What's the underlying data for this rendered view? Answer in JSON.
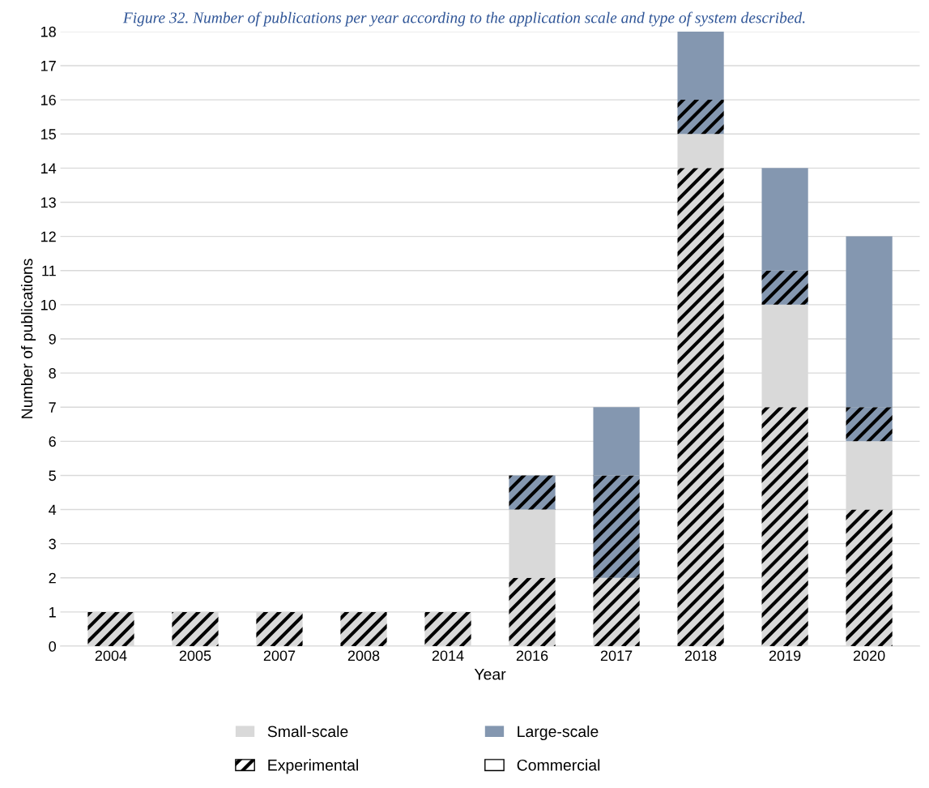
{
  "chart_data": {
    "type": "bar",
    "title": "Figure 32. Number of publications per year according to the application scale and type of system described.",
    "xlabel": "Year",
    "ylabel": "Number of publications",
    "categories": [
      "2004",
      "2005",
      "2007",
      "2008",
      "2014",
      "2016",
      "2017",
      "2018",
      "2019",
      "2020"
    ],
    "stacked": true,
    "series": [
      {
        "color": "#d9d9d9",
        "values": [
          1,
          1,
          1,
          1,
          1,
          2,
          2,
          14,
          7,
          4
        ]
      },
      {
        "name": "Small-scale",
        "color": "#d9d9d9",
        "values": [
          0,
          0,
          0,
          0,
          0,
          2,
          0,
          1,
          3,
          2
        ]
      },
      {
        "color": "#8497b0",
        "values": [
          0,
          0,
          0,
          0,
          0,
          1,
          3,
          1,
          1,
          1
        ]
      },
      {
        "name": "Large-scale",
        "color": "#8497b0",
        "values": [
          0,
          0,
          0,
          0,
          0,
          0,
          2,
          2,
          3,
          5
        ]
      }
    ],
    "annotations": [
      "Experimental",
      "Commercial"
    ],
    "ylim": [
      0,
      18
    ],
    "yticks": [
      0,
      1,
      2,
      3,
      4,
      5,
      6,
      7,
      8,
      9,
      10,
      11,
      12,
      13,
      14,
      15,
      16,
      17,
      18
    ],
    "grid": "y",
    "legend": "bottom"
  }
}
